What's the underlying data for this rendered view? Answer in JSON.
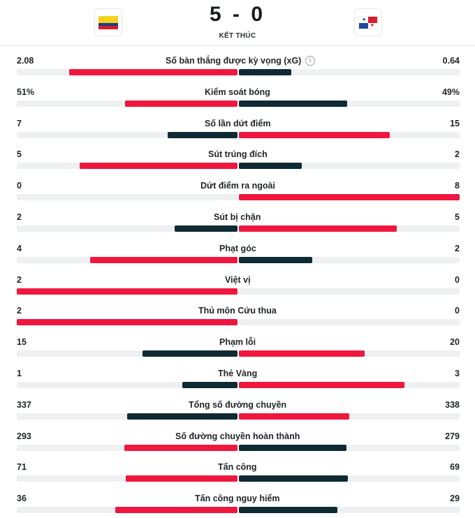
{
  "match": {
    "score": "5 - 0",
    "status": "KẾT THÚC",
    "home_flag": "colombia-flag",
    "away_flag": "panama-flag"
  },
  "colors": {
    "accent_red": "#f0173f",
    "dark_navy": "#0e2a33",
    "track": "#eef0f1"
  },
  "stats": [
    {
      "label": "Số bàn thắng được kỳ vọng (xG)",
      "home": "2.08",
      "away": "0.64",
      "info_icon": true,
      "home_share": 0.763,
      "away_share": 0.237,
      "home_higher": true
    },
    {
      "label": "Kiểm soát bóng",
      "home": "51%",
      "away": "49%",
      "home_share": 0.51,
      "away_share": 0.49,
      "home_higher": true
    },
    {
      "label": "Số lần dứt điểm",
      "home": "7",
      "away": "15",
      "home_share": 0.318,
      "away_share": 0.682,
      "home_higher": false
    },
    {
      "label": "Sút trúng đích",
      "home": "5",
      "away": "2",
      "home_share": 0.714,
      "away_share": 0.286,
      "home_higher": true
    },
    {
      "label": "Dứt điểm ra ngoài",
      "home": "0",
      "away": "8",
      "home_share": 0,
      "away_share": 1,
      "home_higher": false
    },
    {
      "label": "Sút bị chặn",
      "home": "2",
      "away": "5",
      "home_share": 0.286,
      "away_share": 0.714,
      "home_higher": false
    },
    {
      "label": "Phạt góc",
      "home": "4",
      "away": "2",
      "home_share": 0.667,
      "away_share": 0.333,
      "home_higher": true
    },
    {
      "label": "Việt vị",
      "home": "2",
      "away": "0",
      "home_share": 1,
      "away_share": 0,
      "home_higher": true
    },
    {
      "label": "Thủ môn Cứu thua",
      "home": "2",
      "away": "0",
      "home_share": 1,
      "away_share": 0,
      "home_higher": true
    },
    {
      "label": "Phạm lỗi",
      "home": "15",
      "away": "20",
      "home_share": 0.429,
      "away_share": 0.571,
      "home_higher": false
    },
    {
      "label": "Thẻ Vàng",
      "home": "1",
      "away": "3",
      "home_share": 0.25,
      "away_share": 0.75,
      "home_higher": false
    },
    {
      "label": "Tổng số đường chuyền",
      "home": "337",
      "away": "338",
      "home_share": 0.499,
      "away_share": 0.501,
      "home_higher": false
    },
    {
      "label": "Số đường chuyền hoàn thành",
      "home": "293",
      "away": "279",
      "home_share": 0.512,
      "away_share": 0.488,
      "home_higher": true
    },
    {
      "label": "Tấn công",
      "home": "71",
      "away": "69",
      "home_share": 0.507,
      "away_share": 0.493,
      "home_higher": true
    },
    {
      "label": "Tấn công nguy hiểm",
      "home": "36",
      "away": "29",
      "home_share": 0.554,
      "away_share": 0.446,
      "home_higher": true
    }
  ]
}
